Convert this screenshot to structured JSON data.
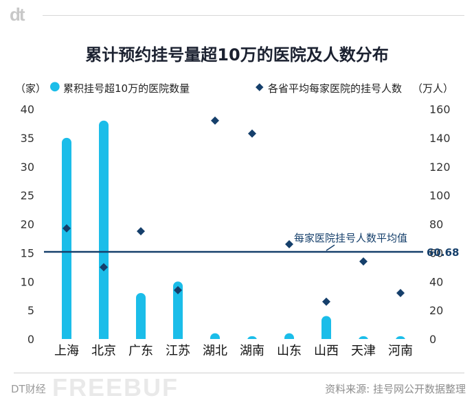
{
  "header": {
    "logo": "dt"
  },
  "chart_data": {
    "type": "bar",
    "title": "累计预约挂号量超10万的医院及人数分布",
    "categories": [
      "上海",
      "北京",
      "广东",
      "江苏",
      "湖北",
      "湖南",
      "山东",
      "山西",
      "天津",
      "河南"
    ],
    "series": [
      {
        "name": "累积挂号超10万的医院数量",
        "type": "bar",
        "axis": "left",
        "color": "#1bbde9",
        "values": [
          35,
          38,
          8,
          10,
          1,
          0.5,
          1,
          4,
          0.5,
          0.5
        ]
      },
      {
        "name": "各省平均每家医院的挂号人数",
        "type": "scatter",
        "axis": "right",
        "marker": "diamond",
        "color": "#153f6b",
        "values": [
          77,
          50,
          75,
          34,
          152,
          143,
          66,
          26,
          54,
          32
        ]
      }
    ],
    "left_axis": {
      "unit": "（家）",
      "min": 0,
      "max": 40,
      "ticks": [
        "0",
        "5",
        "10",
        "15",
        "20",
        "25",
        "30",
        "35",
        "40"
      ]
    },
    "right_axis": {
      "unit": "（万人）",
      "min": 0,
      "max": 160,
      "ticks": [
        "0",
        "20",
        "40",
        "60",
        "80",
        "100",
        "120",
        "140",
        "160"
      ]
    },
    "reference_line": {
      "value": 60.68,
      "axis": "right",
      "value_label": "60.68",
      "label": "每家医院挂号人数平均值",
      "color": "#153f6b"
    },
    "grid": false,
    "legend_position": "top"
  },
  "footer": {
    "brand": "DT财经",
    "watermark": "FREEBUF",
    "source": "资料来源: 挂号网公开数据整理"
  }
}
